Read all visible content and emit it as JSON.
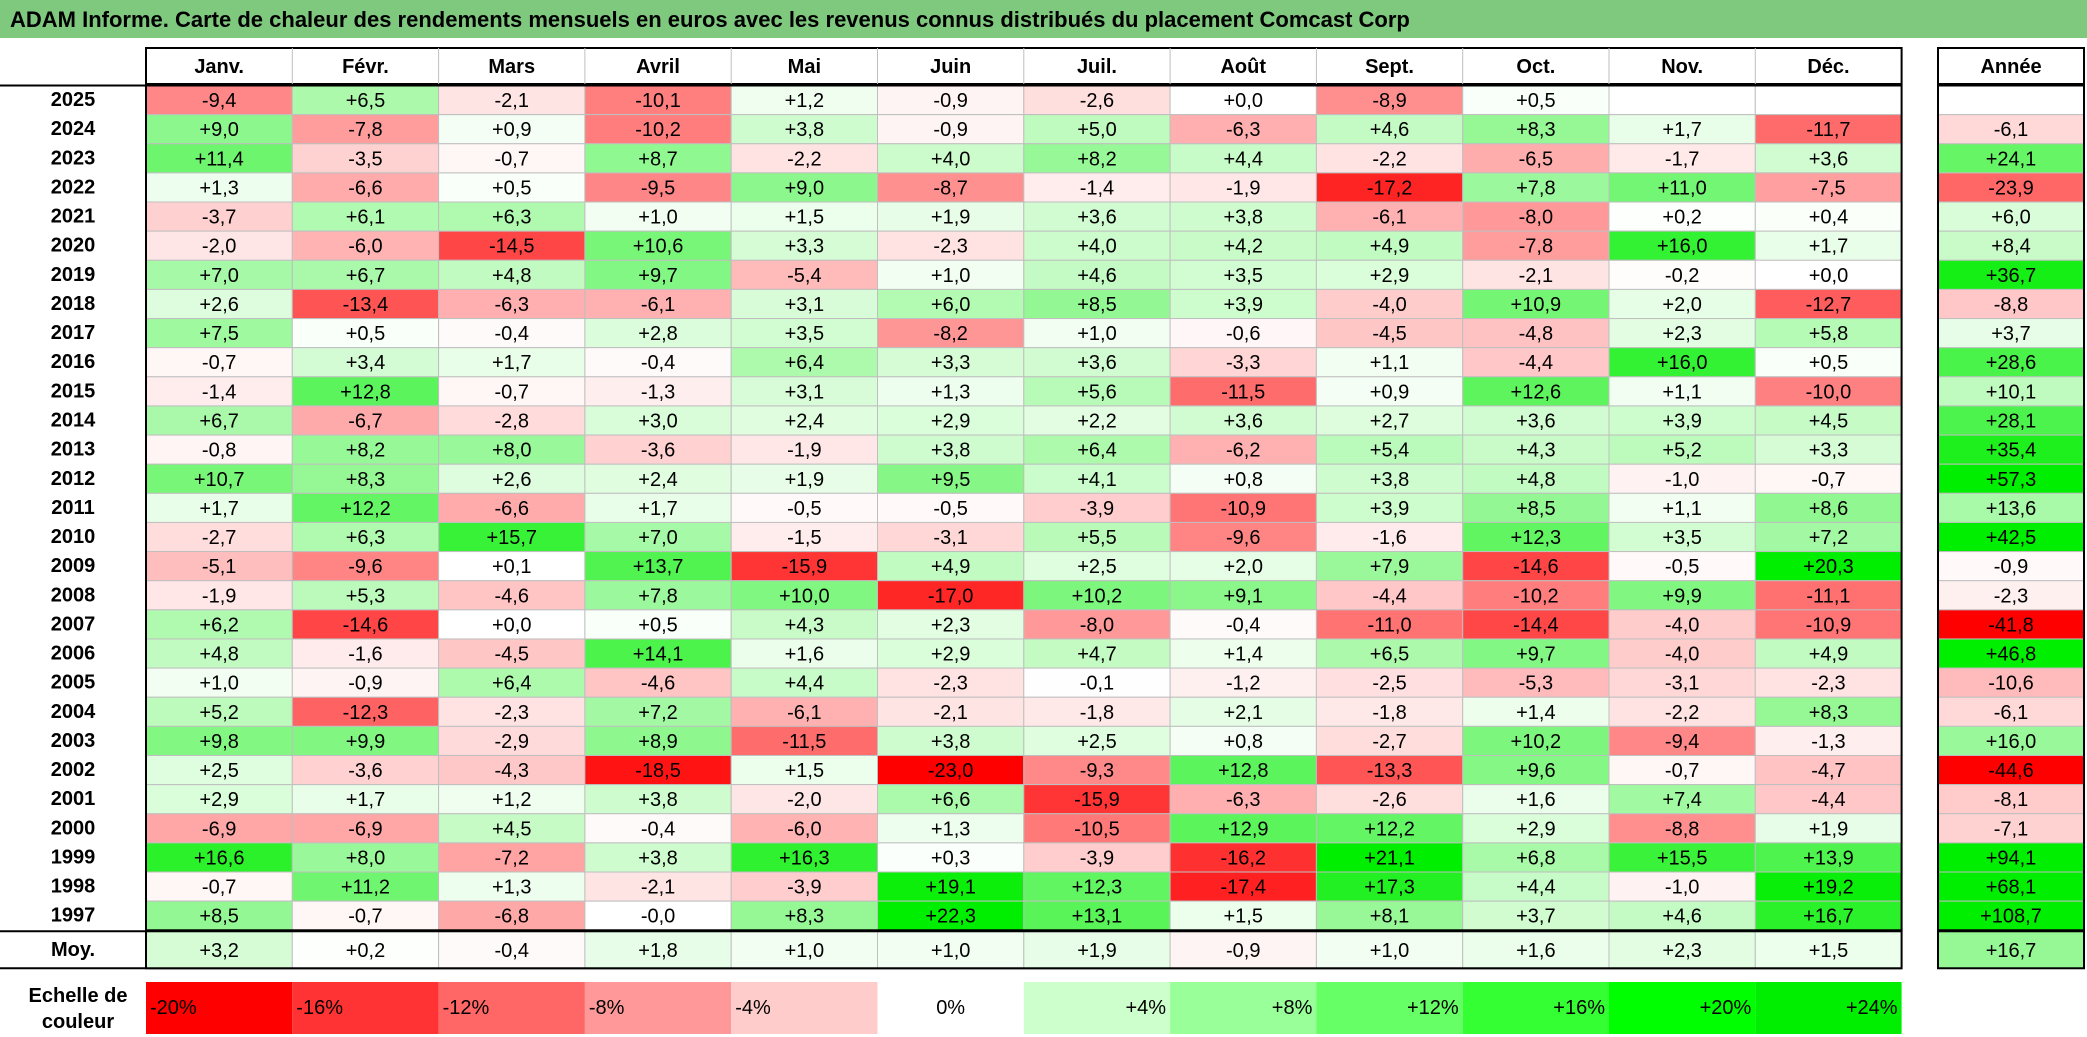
{
  "title": "ADAM Informe. Carte de chaleur des rendements mensuels en euros avec les revenus connus distribués du placement Comcast Corp",
  "chart_data": {
    "type": "heatmap",
    "title": "ADAM Informe. Carte de chaleur des rendements mensuels en euros avec les revenus connus distribués du placement Comcast Corp",
    "months": [
      "Janv.",
      "Févr.",
      "Mars",
      "Avril",
      "Mai",
      "Juin",
      "Juil.",
      "Août",
      "Sept.",
      "Oct.",
      "Nov.",
      "Déc."
    ],
    "year_header": "Année",
    "avg_label": "Moy.",
    "rows": [
      {
        "year": "2025",
        "values": [
          "-9,4",
          "+6,5",
          "-2,1",
          "-10,1",
          "+1,2",
          "-0,9",
          "-2,6",
          "+0,0",
          "-8,9",
          "+0,5",
          "",
          ""
        ],
        "annual": ""
      },
      {
        "year": "2024",
        "values": [
          "+9,0",
          "-7,8",
          "+0,9",
          "-10,2",
          "+3,8",
          "-0,9",
          "+5,0",
          "-6,3",
          "+4,6",
          "+8,3",
          "+1,7",
          "-11,7"
        ],
        "annual": "-6,1"
      },
      {
        "year": "2023",
        "values": [
          "+11,4",
          "-3,5",
          "-0,7",
          "+8,7",
          "-2,2",
          "+4,0",
          "+8,2",
          "+4,4",
          "-2,2",
          "-6,5",
          "-1,7",
          "+3,6"
        ],
        "annual": "+24,1"
      },
      {
        "year": "2022",
        "values": [
          "+1,3",
          "-6,6",
          "+0,5",
          "-9,5",
          "+9,0",
          "-8,7",
          "-1,4",
          "-1,9",
          "-17,2",
          "+7,8",
          "+11,0",
          "-7,5"
        ],
        "annual": "-23,9"
      },
      {
        "year": "2021",
        "values": [
          "-3,7",
          "+6,1",
          "+6,3",
          "+1,0",
          "+1,5",
          "+1,9",
          "+3,6",
          "+3,8",
          "-6,1",
          "-8,0",
          "+0,2",
          "+0,4"
        ],
        "annual": "+6,0"
      },
      {
        "year": "2020",
        "values": [
          "-2,0",
          "-6,0",
          "-14,5",
          "+10,6",
          "+3,3",
          "-2,3",
          "+4,0",
          "+4,2",
          "+4,9",
          "-7,8",
          "+16,0",
          "+1,7"
        ],
        "annual": "+8,4"
      },
      {
        "year": "2019",
        "values": [
          "+7,0",
          "+6,7",
          "+4,8",
          "+9,7",
          "-5,4",
          "+1,0",
          "+4,6",
          "+3,5",
          "+2,9",
          "-2,1",
          "-0,2",
          "+0,0"
        ],
        "annual": "+36,7"
      },
      {
        "year": "2018",
        "values": [
          "+2,6",
          "-13,4",
          "-6,3",
          "-6,1",
          "+3,1",
          "+6,0",
          "+8,5",
          "+3,9",
          "-4,0",
          "+10,9",
          "+2,0",
          "-12,7"
        ],
        "annual": "-8,8"
      },
      {
        "year": "2017",
        "values": [
          "+7,5",
          "+0,5",
          "-0,4",
          "+2,8",
          "+3,5",
          "-8,2",
          "+1,0",
          "-0,6",
          "-4,5",
          "-4,8",
          "+2,3",
          "+5,8"
        ],
        "annual": "+3,7"
      },
      {
        "year": "2016",
        "values": [
          "-0,7",
          "+3,4",
          "+1,7",
          "-0,4",
          "+6,4",
          "+3,3",
          "+3,6",
          "-3,3",
          "+1,1",
          "-4,4",
          "+16,0",
          "+0,5"
        ],
        "annual": "+28,6"
      },
      {
        "year": "2015",
        "values": [
          "-1,4",
          "+12,8",
          "-0,7",
          "-1,3",
          "+3,1",
          "+1,3",
          "+5,6",
          "-11,5",
          "+0,9",
          "+12,6",
          "+1,1",
          "-10,0"
        ],
        "annual": "+10,1"
      },
      {
        "year": "2014",
        "values": [
          "+6,7",
          "-6,7",
          "-2,8",
          "+3,0",
          "+2,4",
          "+2,9",
          "+2,2",
          "+3,6",
          "+2,7",
          "+3,6",
          "+3,9",
          "+4,5"
        ],
        "annual": "+28,1"
      },
      {
        "year": "2013",
        "values": [
          "-0,8",
          "+8,2",
          "+8,0",
          "-3,6",
          "-1,9",
          "+3,8",
          "+6,4",
          "-6,2",
          "+5,4",
          "+4,3",
          "+5,2",
          "+3,3"
        ],
        "annual": "+35,4"
      },
      {
        "year": "2012",
        "values": [
          "+10,7",
          "+8,3",
          "+2,6",
          "+2,4",
          "+1,9",
          "+9,5",
          "+4,1",
          "+0,8",
          "+3,8",
          "+4,8",
          "-1,0",
          "-0,7"
        ],
        "annual": "+57,3"
      },
      {
        "year": "2011",
        "values": [
          "+1,7",
          "+12,2",
          "-6,6",
          "+1,7",
          "-0,5",
          "-0,5",
          "-3,9",
          "-10,9",
          "+3,9",
          "+8,5",
          "+1,1",
          "+8,6"
        ],
        "annual": "+13,6"
      },
      {
        "year": "2010",
        "values": [
          "-2,7",
          "+6,3",
          "+15,7",
          "+7,0",
          "-1,5",
          "-3,1",
          "+5,5",
          "-9,6",
          "-1,6",
          "+12,3",
          "+3,5",
          "+7,2"
        ],
        "annual": "+42,5"
      },
      {
        "year": "2009",
        "values": [
          "-5,1",
          "-9,6",
          "+0,1",
          "+13,7",
          "-15,9",
          "+4,9",
          "+2,5",
          "+2,0",
          "+7,9",
          "-14,6",
          "-0,5",
          "+20,3"
        ],
        "annual": "-0,9"
      },
      {
        "year": "2008",
        "values": [
          "-1,9",
          "+5,3",
          "-4,6",
          "+7,8",
          "+10,0",
          "-17,0",
          "+10,2",
          "+9,1",
          "-4,4",
          "-10,2",
          "+9,9",
          "-11,1"
        ],
        "annual": "-2,3"
      },
      {
        "year": "2007",
        "values": [
          "+6,2",
          "-14,6",
          "+0,0",
          "+0,5",
          "+4,3",
          "+2,3",
          "-8,0",
          "-0,4",
          "-11,0",
          "-14,4",
          "-4,0",
          "-10,9"
        ],
        "annual": "-41,8"
      },
      {
        "year": "2006",
        "values": [
          "+4,8",
          "-1,6",
          "-4,5",
          "+14,1",
          "+1,6",
          "+2,9",
          "+4,7",
          "+1,4",
          "+6,5",
          "+9,7",
          "-4,0",
          "+4,9"
        ],
        "annual": "+46,8"
      },
      {
        "year": "2005",
        "values": [
          "+1,0",
          "-0,9",
          "+6,4",
          "-4,6",
          "+4,4",
          "-2,3",
          "-0,1",
          "-1,2",
          "-2,5",
          "-5,3",
          "-3,1",
          "-2,3"
        ],
        "annual": "-10,6"
      },
      {
        "year": "2004",
        "values": [
          "+5,2",
          "-12,3",
          "-2,3",
          "+7,2",
          "-6,1",
          "-2,1",
          "-1,8",
          "+2,1",
          "-1,8",
          "+1,4",
          "-2,2",
          "+8,3"
        ],
        "annual": "-6,1"
      },
      {
        "year": "2003",
        "values": [
          "+9,8",
          "+9,9",
          "-2,9",
          "+8,9",
          "-11,5",
          "+3,8",
          "+2,5",
          "+0,8",
          "-2,7",
          "+10,2",
          "-9,4",
          "-1,3"
        ],
        "annual": "+16,0"
      },
      {
        "year": "2002",
        "values": [
          "+2,5",
          "-3,6",
          "-4,3",
          "-18,5",
          "+1,5",
          "-23,0",
          "-9,3",
          "+12,8",
          "-13,3",
          "+9,6",
          "-0,7",
          "-4,7"
        ],
        "annual": "-44,6"
      },
      {
        "year": "2001",
        "values": [
          "+2,9",
          "+1,7",
          "+1,2",
          "+3,8",
          "-2,0",
          "+6,6",
          "-15,9",
          "-6,3",
          "-2,6",
          "+1,6",
          "+7,4",
          "-4,4"
        ],
        "annual": "-8,1"
      },
      {
        "year": "2000",
        "values": [
          "-6,9",
          "-6,9",
          "+4,5",
          "-0,4",
          "-6,0",
          "+1,3",
          "-10,5",
          "+12,9",
          "+12,2",
          "+2,9",
          "-8,8",
          "+1,9"
        ],
        "annual": "-7,1"
      },
      {
        "year": "1999",
        "values": [
          "+16,6",
          "+8,0",
          "-7,2",
          "+3,8",
          "+16,3",
          "+0,3",
          "-3,9",
          "-16,2",
          "+21,1",
          "+6,8",
          "+15,5",
          "+13,9"
        ],
        "annual": "+94,1"
      },
      {
        "year": "1998",
        "values": [
          "-0,7",
          "+11,2",
          "+1,3",
          "-2,1",
          "-3,9",
          "+19,1",
          "+12,3",
          "-17,4",
          "+17,3",
          "+4,4",
          "-1,0",
          "+19,2"
        ],
        "annual": "+68,1"
      },
      {
        "year": "1997",
        "values": [
          "+8,5",
          "-0,7",
          "-6,8",
          "-0,0",
          "+8,3",
          "+22,3",
          "+13,1",
          "+1,5",
          "+8,1",
          "+3,7",
          "+4,6",
          "+16,7"
        ],
        "annual": "+108,7"
      }
    ],
    "averages": [
      "+3,2",
      "+0,2",
      "-0,4",
      "+1,8",
      "+1,0",
      "+1,0",
      "+1,9",
      "-0,9",
      "+1,0",
      "+1,6",
      "+2,3",
      "+1,5"
    ],
    "average_annual": "+16,7",
    "scale_label": [
      "Echelle de",
      "couleur"
    ],
    "scale": [
      {
        "label": "-20%",
        "value": -20,
        "color": "#ff0000"
      },
      {
        "label": "-16%",
        "value": -16,
        "color": "#ff3333"
      },
      {
        "label": "-12%",
        "value": -12,
        "color": "#ff6666"
      },
      {
        "label": "-8%",
        "value": -8,
        "color": "#ff9999"
      },
      {
        "label": "-4%",
        "value": -4,
        "color": "#ffcccc"
      },
      {
        "label": "0%",
        "value": 0,
        "color": "#ffffff"
      },
      {
        "label": "+4%",
        "value": 4,
        "color": "#ccffcc"
      },
      {
        "label": "+8%",
        "value": 8,
        "color": "#99ff99"
      },
      {
        "label": "+12%",
        "value": 12,
        "color": "#66ff66"
      },
      {
        "label": "+16%",
        "value": 16,
        "color": "#33ff33"
      },
      {
        "label": "+20%",
        "value": 20,
        "color": "#00ff00"
      },
      {
        "label": "+24%",
        "value": 24,
        "color": "#00ee00"
      }
    ],
    "colors": {
      "title_bg": "#7fc97f",
      "grid": "#bfbfbf",
      "border": "#000000"
    }
  }
}
